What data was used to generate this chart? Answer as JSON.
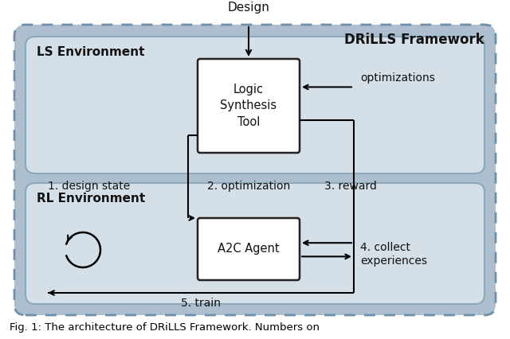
{
  "title": "DRiLLS Framework",
  "caption": "Fig. 1: The architecture of DRiLLS Framework. Numbers on",
  "bg_outer": "#adbfcf",
  "bg_ls_env": "#d5dfe8",
  "bg_rl_env": "#d5dfe8",
  "bg_box": "#ffffff",
  "border_outer": "#6e8fa8",
  "border_env": "#8aaabb",
  "box_border": "#222222",
  "text_color": "#111111",
  "ls_env_label": "LS Environment",
  "rl_env_label": "RL Environment",
  "logic_tool_text": "Logic\nSynthesis\nTool",
  "a2c_text": "A2C Agent",
  "label_design": "Design",
  "label_optimizations": "optimizations",
  "label_1": "1. design state",
  "label_2": "2. optimization",
  "label_3": "3. reward",
  "label_4": "4. collect\nexperiences",
  "label_5": "5. train"
}
